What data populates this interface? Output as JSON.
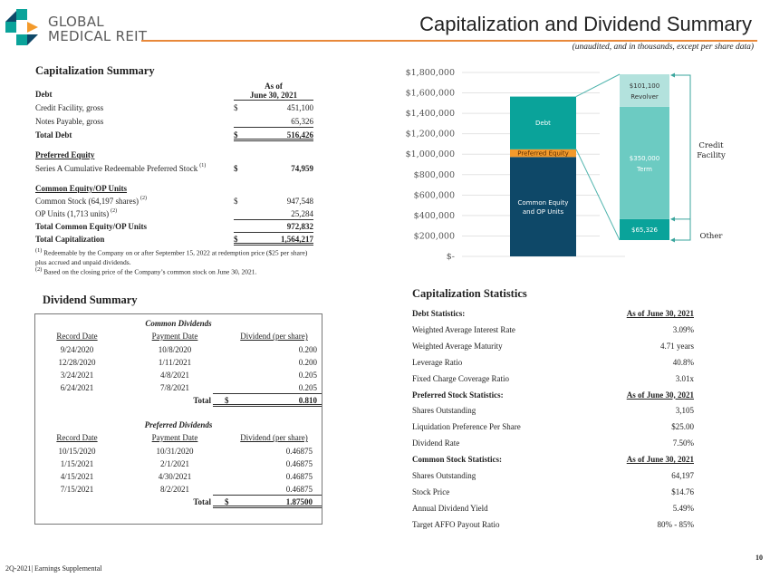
{
  "logo": {
    "line1": "GLOBAL",
    "line2": "MEDICAL REIT"
  },
  "header": {
    "title": "Capitalization and Dividend Summary",
    "subtitle": "(unaudited, and in thousands, except per share data)"
  },
  "cap_summary": {
    "title": "Capitalization  Summary",
    "col_header1": "As of",
    "col_header2": "June 30, 2021",
    "rows": [
      {
        "label": "Debt",
        "style": "b",
        "y": 104
      },
      {
        "label": "Credit Facility,  gross",
        "cur": "$",
        "value": "451,100",
        "y": 119
      },
      {
        "label": "Notes Payable, gross",
        "value": "65,326",
        "y": 134,
        "vline": "ul"
      },
      {
        "label": "Total Debt",
        "cur": "$",
        "value": "516,426",
        "style": "b",
        "y": 149,
        "vline": "dbl"
      },
      {
        "label": "Preferred Equity",
        "style": "b u",
        "y": 171
      },
      {
        "label": "Series A Cumulative Redeemable Preferred Stock",
        "sup": "(1)",
        "cur": "$",
        "value": "74,959",
        "vstyle": "b",
        "y": 186
      },
      {
        "label": "Common Equity/OP Units",
        "style": "b u",
        "y": 208
      },
      {
        "label": "Common Stock (64,197 shares)",
        "sup": "(2)",
        "cur": "$",
        "value": "947,548",
        "y": 222
      },
      {
        "label": "OP Units (1,713 units)",
        "sup": "(2)",
        "value": "25,284",
        "y": 236,
        "vline": "ul"
      },
      {
        "label": "Total Common Equity/OP Units",
        "value": "972,832",
        "style": "b",
        "y": 250,
        "vline": "ul"
      },
      {
        "label": "Total Capitalization",
        "cur": "$",
        "value": "1,564,217",
        "style": "b",
        "y": 264,
        "vline": "dbl"
      }
    ],
    "footnote1_mark": "(1)",
    "footnote1": "Redeemable by the Company on or after September 15, 2022 at redemption price ($25 per share) plus accrued and unpaid dividends.",
    "footnote2_mark": "(2)",
    "footnote2": "Based on the closing price of the Company’s common stock on June 30, 2021."
  },
  "chart_data": {
    "type": "bar",
    "ylim": [
      0,
      1800000
    ],
    "yticks": [
      "$-",
      "$200,000",
      "$400,000",
      "$600,000",
      "$800,000",
      "$1,000,000",
      "$1,200,000",
      "$1,400,000",
      "$1,600,000",
      "$1,800,000"
    ],
    "main_bar": [
      {
        "name": "Common Equity and OP Units",
        "label1": "Common Equity",
        "label2": "and OP Units",
        "value": 972832,
        "color": "#0e4868"
      },
      {
        "name": "Preferred Equity",
        "label1": "Preferred Equity",
        "value": 74959,
        "color": "#f39a2b"
      },
      {
        "name": "Debt",
        "label1": "Debt",
        "value": 516426,
        "color": "#0aa39a"
      }
    ],
    "debt_breakdown": [
      {
        "name": "Other",
        "label1": "$65,326",
        "value": 65326,
        "color": "#0aa39a"
      },
      {
        "name": "Term",
        "label1": "$350,000",
        "label2": "Term",
        "value": 350000,
        "color": "#6ccbc2"
      },
      {
        "name": "Revolver",
        "label1": "$101,100",
        "label2": "Revolver",
        "value": 101100,
        "color": "#b3e2dd"
      }
    ],
    "bracket_labels": {
      "credit1": "Credit",
      "credit2": "Facility",
      "other": "Other"
    }
  },
  "dividends": {
    "title": "Dividend Summary",
    "common_title": "Common Dividends",
    "preferred_title": "Preferred Dividends",
    "headers": [
      "Record Date",
      "Payment Date",
      "Dividend  (per share)"
    ],
    "common": [
      [
        "9/24/2020",
        "10/8/2020",
        "0.200"
      ],
      [
        "12/28/2020",
        "1/11/2021",
        "0.200"
      ],
      [
        "3/24/2021",
        "4/8/2021",
        "0.205"
      ],
      [
        "6/24/2021",
        "7/8/2021",
        "0.205"
      ]
    ],
    "common_total": {
      "label": "Total",
      "cur": "$",
      "value": "0.810"
    },
    "preferred": [
      [
        "10/15/2020",
        "10/31/2020",
        "0.46875"
      ],
      [
        "1/15/2021",
        "2/1/2021",
        "0.46875"
      ],
      [
        "4/15/2021",
        "4/30/2021",
        "0.46875"
      ],
      [
        "7/15/2021",
        "8/2/2021",
        "0.46875"
      ]
    ],
    "preferred_total": {
      "label": "Total",
      "cur": "$",
      "value": "1.87500"
    }
  },
  "stats": {
    "title": "Capitalization Statistics",
    "rows": [
      {
        "label": "Debt Statistics:",
        "value": "As of June 30, 2021",
        "head": true
      },
      {
        "label": "Weighted Average Interest Rate",
        "value": "3.09%"
      },
      {
        "label": "Weighted Average Maturity",
        "value": "4.71 years"
      },
      {
        "label": "Leverage Ratio",
        "value": "40.8%"
      },
      {
        "label": "Fixed Charge Coverage Ratio",
        "value": "3.01x"
      },
      {
        "label": "Preferred Stock Statistics:",
        "value": "As of June 30, 2021",
        "head": true
      },
      {
        "label": "Shares Outstanding",
        "value": "3,105"
      },
      {
        "label": "Liquidation  Preference Per Share",
        "value": "$25.00"
      },
      {
        "label": "Dividend  Rate",
        "value": "7.50%"
      },
      {
        "label": "Common Stock Statistics:",
        "value": "As of June 30, 2021",
        "head": true
      },
      {
        "label": "Shares Outstanding",
        "value": "64,197"
      },
      {
        "label": "Stock Price",
        "value": "$14.76"
      },
      {
        "label": "Annual Dividend  Yield",
        "value": "5.49%"
      },
      {
        "label": "Target AFFO Payout Ratio",
        "value": "80% - 85%"
      }
    ]
  },
  "footer": {
    "text": "2Q-2021|  Earnings Supplemental",
    "page": "10"
  }
}
